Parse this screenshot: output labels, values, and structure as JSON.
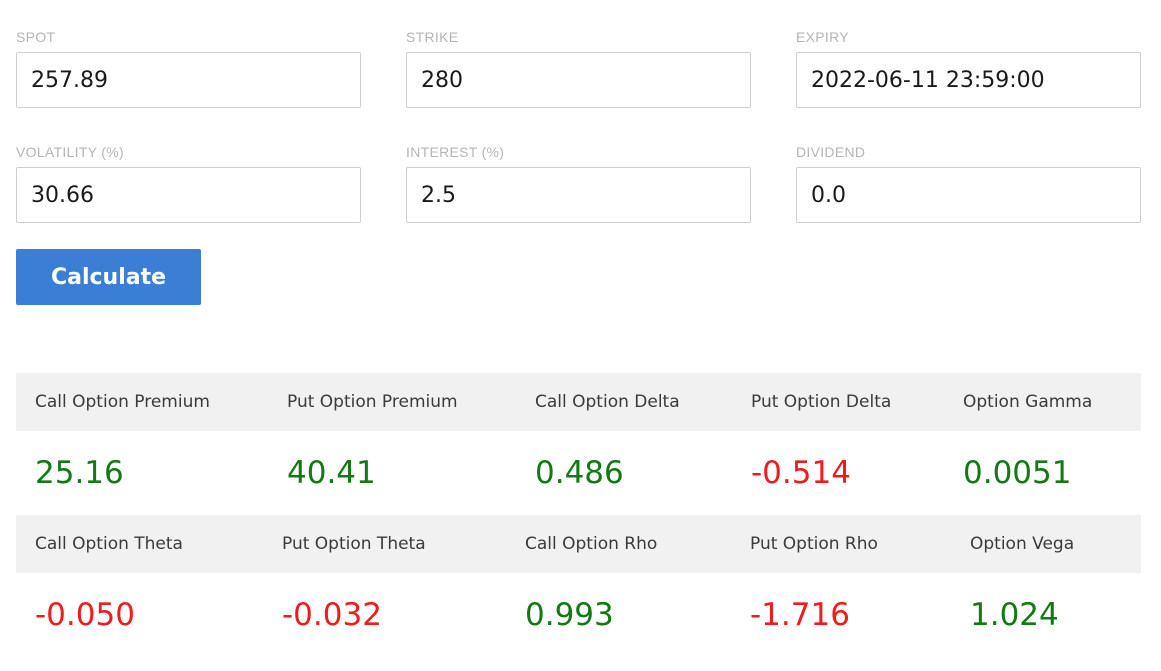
{
  "inputs": {
    "spot": {
      "label": "SPOT",
      "value": "257.89"
    },
    "strike": {
      "label": "STRIKE",
      "value": "280"
    },
    "expiry": {
      "label": "EXPIRY",
      "value": "2022-06-11 23:59:00"
    },
    "volatility": {
      "label": "VOLATILITY (%)",
      "value": "30.66"
    },
    "interest": {
      "label": "INTEREST (%)",
      "value": "2.5"
    },
    "dividend": {
      "label": "DIVIDEND",
      "value": "0.0"
    }
  },
  "calculate_label": "Calculate",
  "results": {
    "row1": [
      {
        "label": "Call Option Premium",
        "value": "25.16"
      },
      {
        "label": "Put Option Premium",
        "value": "40.41"
      },
      {
        "label": "Call Option Delta",
        "value": "0.486"
      },
      {
        "label": "Put Option Delta",
        "value": "-0.514"
      },
      {
        "label": "Option Gamma",
        "value": "0.0051"
      }
    ],
    "row2": [
      {
        "label": "Call Option Theta",
        "value": "-0.050"
      },
      {
        "label": "Put Option Theta",
        "value": "-0.032"
      },
      {
        "label": "Call Option Rho",
        "value": "0.993"
      },
      {
        "label": "Put Option Rho",
        "value": "-1.716"
      },
      {
        "label": "Option Vega",
        "value": "1.024"
      }
    ]
  },
  "colors": {
    "positive": "#137a13",
    "negative": "#ee1c1c",
    "button": "#3a7fd5",
    "header_bg": "#f1f1f1"
  }
}
